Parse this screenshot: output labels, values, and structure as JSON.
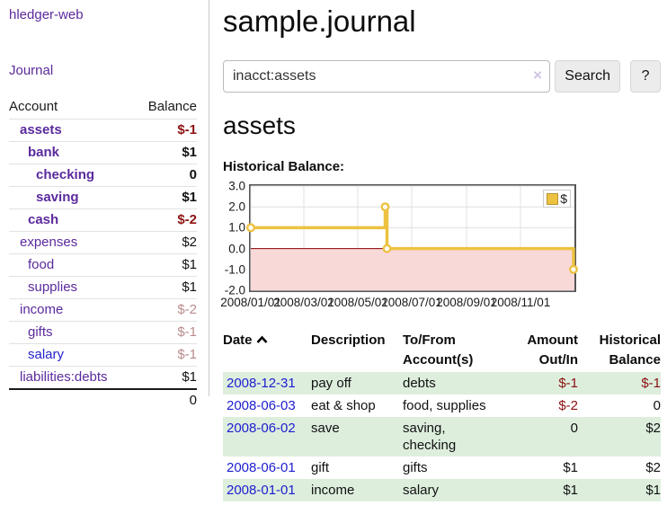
{
  "app": {
    "title": "hledger-web"
  },
  "sidebar": {
    "nav": {
      "journal": "Journal"
    },
    "accounts": {
      "headers": {
        "account": "Account",
        "balance": "Balance"
      },
      "rows": [
        {
          "account": "assets",
          "balance": "$-1"
        },
        {
          "account": "bank",
          "balance": "$1"
        },
        {
          "account": "checking",
          "balance": "0"
        },
        {
          "account": "saving",
          "balance": "$1"
        },
        {
          "account": "cash",
          "balance": "$-2"
        },
        {
          "account": "expenses",
          "balance": "$2"
        },
        {
          "account": "food",
          "balance": "$1"
        },
        {
          "account": "supplies",
          "balance": "$1"
        },
        {
          "account": "income",
          "balance": "$-2"
        },
        {
          "account": "gifts",
          "balance": "$-1"
        },
        {
          "account": "salary",
          "balance": "$-1"
        },
        {
          "account": "liabilities:debts",
          "balance": "$1"
        }
      ],
      "total": "0"
    }
  },
  "main": {
    "title": "sample.journal",
    "search": {
      "value": "inacct:assets",
      "clear_icon": "×",
      "search_button": "Search",
      "help_button": "?"
    },
    "account_heading": "assets",
    "chart_heading": "Historical Balance:"
  },
  "chart_data": {
    "type": "line",
    "title": "Historical Balance",
    "step": true,
    "legend": [
      {
        "label": "$",
        "color": "#edc240"
      }
    ],
    "legend_position": "top-right",
    "grid": true,
    "ylim": [
      -2,
      3
    ],
    "y_ticks": [
      "3.0",
      "2.0",
      "1.0",
      "0.0",
      "-1.0",
      "-2.0"
    ],
    "x_range": [
      "2008/01/01",
      "2009/01/01"
    ],
    "x_ticks": [
      "2008/01/01",
      "2008/03/01",
      "2008/05/01",
      "2008/07/01",
      "2008/09/01",
      "2008/11/01"
    ],
    "series": [
      {
        "name": "$",
        "points": [
          [
            "2008-01-01",
            1
          ],
          [
            "2008-06-01",
            2
          ],
          [
            "2008-06-03",
            0
          ],
          [
            "2008-12-31",
            -1
          ]
        ]
      }
    ],
    "negative_region_below": 0,
    "colors": {
      "series": "#edc240",
      "negative_fill": "#f9d8d8",
      "zero_line": "#8b0000",
      "border": "#555555"
    }
  },
  "register": {
    "headers": {
      "date": "Date",
      "sort_icon": "sort-ascending",
      "description": "Description",
      "accounts": "To/From Account(s)",
      "amount": "Amount Out/In",
      "balance": "Historical Balance"
    },
    "rows": [
      {
        "date": "2008-12-31",
        "description": "pay off",
        "accounts": "debts",
        "amount": "$-1",
        "balance": "$-1"
      },
      {
        "date": "2008-06-03",
        "description": "eat & shop",
        "accounts": "food, supplies",
        "amount": "$-2",
        "balance": "0"
      },
      {
        "date": "2008-06-02",
        "description": "save",
        "accounts": "saving, checking",
        "amount": "0",
        "balance": "$2"
      },
      {
        "date": "2008-06-01",
        "description": "gift",
        "accounts": "gifts",
        "amount": "$1",
        "balance": "$2"
      },
      {
        "date": "2008-01-01",
        "description": "income",
        "accounts": "salary",
        "amount": "$1",
        "balance": "$1"
      }
    ]
  }
}
